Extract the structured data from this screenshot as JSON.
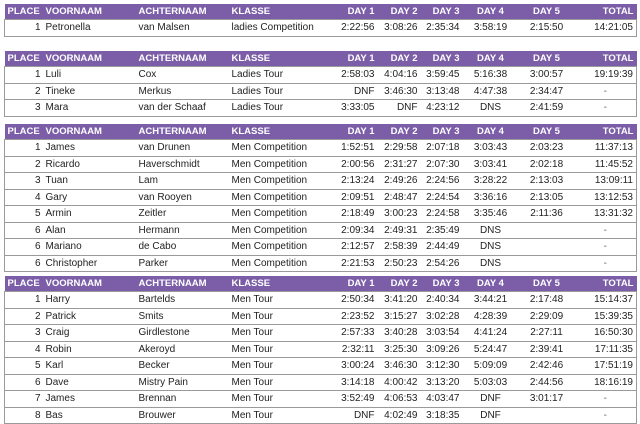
{
  "columns": [
    "PLACE",
    "VOORNAAM",
    "ACHTERNAAM",
    "KLASSE",
    "DAY 1",
    "DAY 2",
    "DAY 3",
    "DAY 4",
    "DAY 5",
    "TOTAL"
  ],
  "header_color": "#7b5ea7",
  "tables": [
    {
      "rows": [
        [
          "1",
          "Petronella",
          "van Malsen",
          "ladies Competition",
          "2:22:56",
          "3:08:26",
          "2:35:34",
          "3:58:19",
          "2:15:50",
          "14:21:05"
        ]
      ]
    },
    {
      "rows": [
        [
          "1",
          "Luli",
          "Cox",
          "Ladies Tour",
          "2:58:03",
          "4:04:16",
          "3:59:45",
          "5:16:38",
          "3:00:57",
          "19:19:39"
        ],
        [
          "2",
          "Tineke",
          "Merkus",
          "Ladies Tour",
          "DNF",
          "3:46:30",
          "3:13:48",
          "4:47:38",
          "2:34:47",
          "-"
        ],
        [
          "3",
          "Mara",
          "van der Schaaf",
          "Ladies Tour",
          "3:33:05",
          "DNF",
          "4:23:12",
          "DNS",
          "2:41:59",
          "-"
        ]
      ]
    },
    {
      "rows": [
        [
          "1",
          "James",
          "van Drunen",
          "Men Competition",
          "1:52:51",
          "2:29:58",
          "2:07:18",
          "3:03:43",
          "2:03:23",
          "11:37:13"
        ],
        [
          "2",
          "Ricardo",
          "Haverschmidt",
          "Men Competition",
          "2:00:56",
          "2:31:27",
          "2:07:30",
          "3:03:41",
          "2:02:18",
          "11:45:52"
        ],
        [
          "3",
          "Tuan",
          "Lam",
          "Men Competition",
          "2:13:24",
          "2:49:26",
          "2:24:56",
          "3:28:22",
          "2:13:03",
          "13:09:11"
        ],
        [
          "4",
          "Gary",
          "van Rooyen",
          "Men Competition",
          "2:09:51",
          "2:48:47",
          "2:24:54",
          "3:36:16",
          "2:13:05",
          "13:12:53"
        ],
        [
          "5",
          "Armin",
          "Zeitler",
          "Men Competition",
          "2:18:49",
          "3:00:23",
          "2:24:58",
          "3:35:46",
          "2:11:36",
          "13:31:32"
        ],
        [
          "6",
          "Alan",
          "Hermann",
          "Men Competition",
          "2:09:34",
          "2:49:31",
          "2:35:49",
          "DNS",
          "",
          "-"
        ],
        [
          "6",
          "Mariano",
          "de Cabo",
          "Men Competition",
          "2:12:57",
          "2:58:39",
          "2:44:49",
          "DNS",
          "",
          "-"
        ],
        [
          "6",
          "Christopher",
          "Parker",
          "Men Competition",
          "2:21:53",
          "2:50:23",
          "2:54:26",
          "DNS",
          "",
          "-"
        ]
      ]
    },
    {
      "rows": [
        [
          "1",
          "Harry",
          "Bartelds",
          "Men Tour",
          "2:50:34",
          "3:41:20",
          "2:40:34",
          "3:44:21",
          "2:17:48",
          "15:14:37"
        ],
        [
          "2",
          "Patrick",
          "Smits",
          "Men Tour",
          "2:23:52",
          "3:15:27",
          "3:02:28",
          "4:28:39",
          "2:29:09",
          "15:39:35"
        ],
        [
          "3",
          "Craig",
          "Girdlestone",
          "Men Tour",
          "2:57:33",
          "3:40:28",
          "3:03:54",
          "4:41:24",
          "2:27:11",
          "16:50:30"
        ],
        [
          "4",
          "Robin",
          "Akeroyd",
          "Men Tour",
          "2:32:11",
          "3:25:30",
          "3:09:26",
          "5:24:47",
          "2:39:41",
          "17:11:35"
        ],
        [
          "5",
          "Karl",
          "Becker",
          "Men Tour",
          "3:00:24",
          "3:46:30",
          "3:12:30",
          "5:09:09",
          "2:42:46",
          "17:51:19"
        ],
        [
          "6",
          "Dave",
          "Mistry Pain",
          "Men Tour",
          "3:14:18",
          "4:00:42",
          "3:13:20",
          "5:03:03",
          "2:44:56",
          "18:16:19"
        ],
        [
          "7",
          "James",
          "Brennan",
          "Men Tour",
          "3:52:49",
          "4:06:53",
          "4:03:47",
          "DNF",
          "3:01:17",
          "-"
        ],
        [
          "8",
          "Bas",
          "Brouwer",
          "Men Tour",
          "DNF",
          "4:02:49",
          "3:18:35",
          "DNF",
          "",
          "-"
        ]
      ]
    }
  ]
}
